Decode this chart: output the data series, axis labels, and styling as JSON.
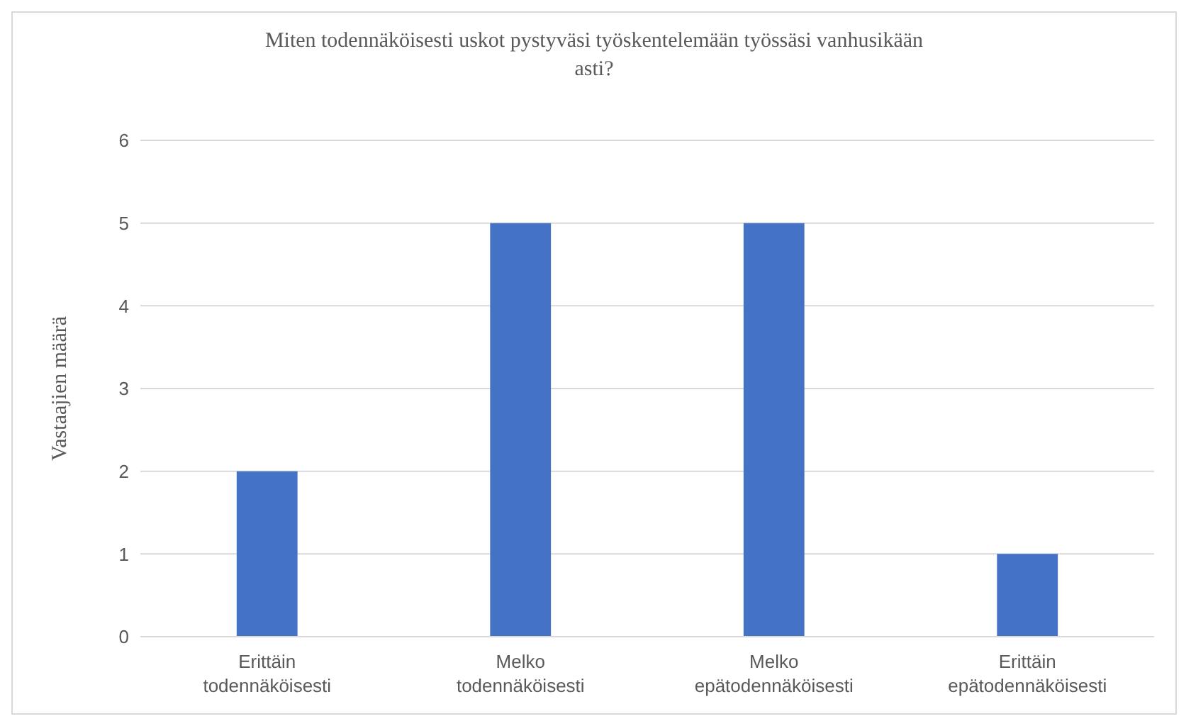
{
  "chart_data": {
    "type": "bar",
    "title": "Miten todennäköisesti uskot pystyväsi työskentelemään työssäsi vanhusikään asti?",
    "ylabel": "Vastaajien määrä",
    "categories": [
      "Erittäin todennäköisesti",
      "Melko todennäköisesti",
      "Melko epätodennäköisesti",
      "Erittäin epätodennäköisesti"
    ],
    "values": [
      2,
      5,
      5,
      1
    ],
    "color": "#4472c4",
    "ylim": [
      0,
      6
    ],
    "yticks": [
      0,
      1,
      2,
      3,
      4,
      5,
      6
    ],
    "grid": "y"
  }
}
